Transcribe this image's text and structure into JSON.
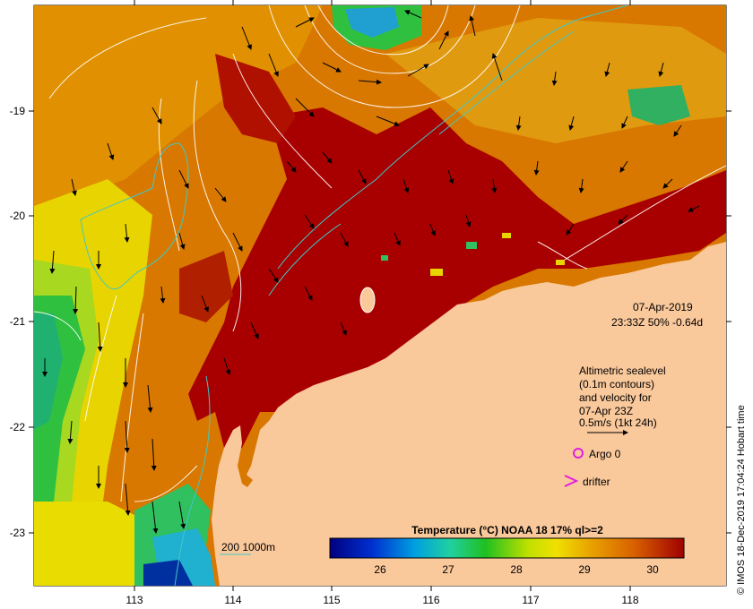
{
  "map": {
    "x_ticks": [
      "113",
      "114",
      "115",
      "116",
      "117",
      "118"
    ],
    "y_ticks": [
      "-19",
      "-20",
      "-21",
      "-22",
      "-23"
    ],
    "date_label": "07-Apr-2019",
    "time_label": "23:33Z  50% -0.64d",
    "legend": {
      "lines": [
        "Altimetric sealevel",
        "(0.1m contours)",
        "and velocity for",
        "07-Apr 23Z",
        "0.5m/s (1kt 24h)"
      ],
      "argo_label": "Argo 0",
      "drifter_label": "drifter"
    },
    "depth_label": "200  1000m",
    "colorbar": {
      "title": "Temperature (°C) NOAA 18 17% ql>=2",
      "ticks": [
        "26",
        "27",
        "28",
        "29",
        "30"
      ]
    },
    "credit": "© IMOS 18-Dec-2019 17:04:24 Hobart time",
    "colors": {
      "land": "#f9c89b",
      "hot": "#a80000",
      "warm": "#d86a00",
      "mid": "#e8a000",
      "yellow": "#e8e000",
      "green": "#2ec040",
      "cyan": "#1ec8c8",
      "contour": "#ffffff",
      "isobath": "#40c8c8",
      "argo": "#e020e0"
    }
  }
}
